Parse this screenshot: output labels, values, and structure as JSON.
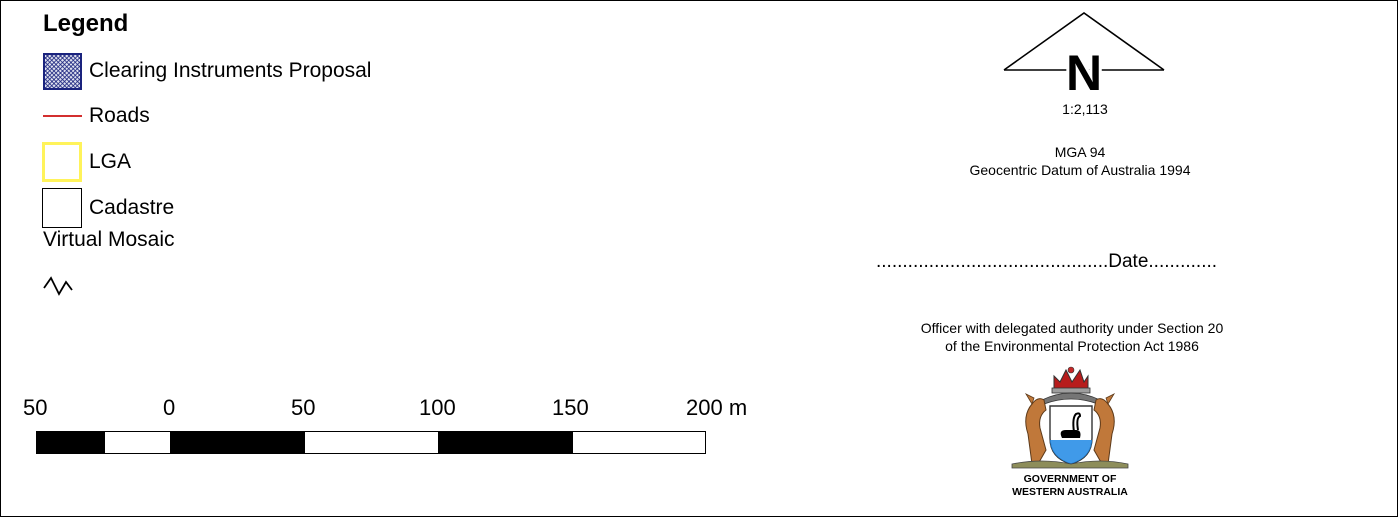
{
  "legend": {
    "title": "Legend",
    "items": [
      {
        "label": "Clearing Instruments Proposal",
        "symbol": "crosshatch-fill",
        "color": "#1a237e"
      },
      {
        "label": "Roads",
        "symbol": "line",
        "color": "#d32f2f"
      },
      {
        "label": "LGA",
        "symbol": "outline-box",
        "color": "#fff35a"
      },
      {
        "label": "Cadastre",
        "symbol": "outline-box",
        "color": "#000000"
      }
    ],
    "virtual_mosaic_label": "Virtual Mosaic"
  },
  "scale_bar": {
    "labels": [
      "50",
      "0",
      "50",
      "100",
      "150",
      "200 m"
    ]
  },
  "north_arrow": {
    "letter": "N"
  },
  "map_info": {
    "scale": "1:2,113",
    "projection_line1": "MGA 94",
    "projection_line2": "Geocentric Datum of Australia 1994"
  },
  "signature": {
    "date_line": "............................................Date.............",
    "officer_line1": "Officer with delegated authority under Section 20",
    "officer_line2": "of the Environmental Protection Act 1986"
  },
  "crest": {
    "line1": "GOVERNMENT OF",
    "line2": "WESTERN AUSTRALIA"
  }
}
